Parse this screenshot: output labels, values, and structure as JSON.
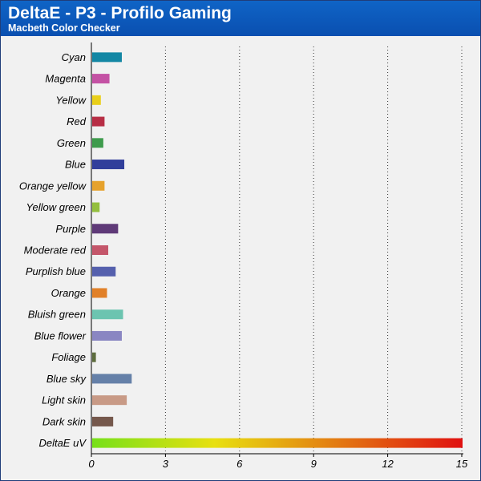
{
  "header": {
    "title": "DeltaE - P3 - Profilo Gaming",
    "subtitle": "Macbeth Color Checker"
  },
  "colors": {
    "header_bg": "#0b57b8",
    "plot_bg": "#f1f1f1",
    "border": "#1f3d7a"
  },
  "chart_data": {
    "type": "bar",
    "orientation": "horizontal",
    "title": "DeltaE - P3 - Profilo Gaming",
    "subtitle": "Macbeth Color Checker",
    "xlim": [
      0,
      15
    ],
    "xticks": [
      0,
      3,
      6,
      9,
      12,
      15
    ],
    "grid": "vertical dotted",
    "categories": [
      "Cyan",
      "Magenta",
      "Yellow",
      "Red",
      "Green",
      "Blue",
      "Orange yellow",
      "Yellow green",
      "Purple",
      "Moderate red",
      "Purplish blue",
      "Orange",
      "Bluish green",
      "Blue flower",
      "Foliage",
      "Blue sky",
      "Light skin",
      "Dark skin",
      "DeltaE uV"
    ],
    "values": [
      1.2,
      0.7,
      0.35,
      0.5,
      0.45,
      1.3,
      0.5,
      0.3,
      1.05,
      0.65,
      0.95,
      0.6,
      1.25,
      1.2,
      0.15,
      1.6,
      1.4,
      0.85,
      15
    ],
    "bar_colors": [
      "#1387a4",
      "#c452a4",
      "#e9cf1a",
      "#b72e45",
      "#3e9b4c",
      "#313f9b",
      "#e6a22c",
      "#94bf3e",
      "#5f3a78",
      "#c4566a",
      "#5560ad",
      "#e18028",
      "#6cc4b0",
      "#8a86c2",
      "#5e6d3e",
      "#6580a8",
      "#c89a86",
      "#75584c"
    ],
    "gradient_bar": {
      "category": "DeltaE uV",
      "colors": [
        "#76e01a",
        "#e8e010",
        "#e37b12",
        "#e01010"
      ]
    }
  }
}
